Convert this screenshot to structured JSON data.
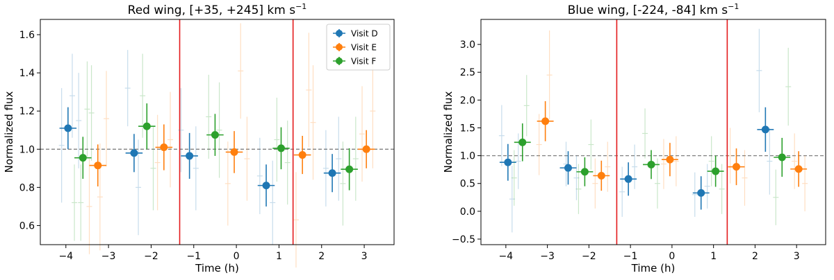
{
  "chart_data": [
    {
      "type": "scatter",
      "title": "Red wing, [+35, +245] km s",
      "title_superscript": "−1",
      "xlabel": "Time (h)",
      "ylabel": "Normalized flux",
      "xlim": [
        -4.6,
        3.7
      ],
      "ylim": [
        0.5,
        1.68
      ],
      "xticks": [
        -4,
        -3,
        -2,
        -1,
        0,
        1,
        2,
        3
      ],
      "xtick_labels": [
        "−4",
        "−3",
        "−2",
        "−1",
        "0",
        "1",
        "2",
        "3"
      ],
      "yticks": [
        0.6,
        0.8,
        1.0,
        1.2,
        1.4,
        1.6
      ],
      "ytick_labels": [
        "0.6",
        "0.8",
        "1.0",
        "1.2",
        "1.4",
        "1.6"
      ],
      "reference_line": 1.0,
      "vlines": [
        -1.33,
        1.33
      ],
      "vline_color": "#e41a1c",
      "legend": {
        "position": "top-right",
        "entries": [
          "Visit D",
          "Visit E",
          "Visit F"
        ]
      },
      "series": [
        {
          "name": "Visit D",
          "color": "#1f77b4",
          "binned": [
            {
              "x": -3.95,
              "y": 1.11,
              "xerr": 0.2,
              "yerr": 0.11
            },
            {
              "x": -2.4,
              "y": 0.98,
              "xerr": 0.2,
              "yerr": 0.1
            },
            {
              "x": -1.1,
              "y": 0.965,
              "xerr": 0.2,
              "yerr": 0.12
            },
            {
              "x": 0.7,
              "y": 0.81,
              "xerr": 0.2,
              "yerr": 0.11
            },
            {
              "x": 2.25,
              "y": 0.875,
              "xerr": 0.2,
              "yerr": 0.1
            }
          ],
          "raw": [
            {
              "x": -4.1,
              "y": 1.02,
              "yerr": 0.3
            },
            {
              "x": -3.85,
              "y": 1.28,
              "yerr": 0.22
            },
            {
              "x": -3.7,
              "y": 1.15,
              "yerr": 0.25
            },
            {
              "x": -2.55,
              "y": 1.32,
              "yerr": 0.2
            },
            {
              "x": -2.3,
              "y": 0.8,
              "yerr": 0.25
            },
            {
              "x": -1.3,
              "y": 1.1,
              "yerr": 0.22
            },
            {
              "x": -0.95,
              "y": 0.9,
              "yerr": 0.22
            },
            {
              "x": 0.55,
              "y": 0.86,
              "yerr": 0.2
            },
            {
              "x": 0.85,
              "y": 0.72,
              "yerr": 0.22
            },
            {
              "x": 2.1,
              "y": 0.9,
              "yerr": 0.2
            },
            {
              "x": 2.4,
              "y": 0.95,
              "yerr": 0.22
            }
          ]
        },
        {
          "name": "Visit E",
          "color": "#ff7f0e",
          "binned": [
            {
              "x": -3.25,
              "y": 0.915,
              "xerr": 0.2,
              "yerr": 0.11
            },
            {
              "x": -1.7,
              "y": 1.01,
              "xerr": 0.2,
              "yerr": 0.12
            },
            {
              "x": -0.05,
              "y": 0.985,
              "xerr": 0.2,
              "yerr": 0.11
            },
            {
              "x": 1.55,
              "y": 0.97,
              "xerr": 0.2,
              "yerr": 0.1
            },
            {
              "x": 3.05,
              "y": 1.0,
              "xerr": 0.2,
              "yerr": 0.1
            }
          ],
          "raw": [
            {
              "x": -3.45,
              "y": 0.7,
              "yerr": 0.25
            },
            {
              "x": -3.2,
              "y": 0.75,
              "yerr": 0.28
            },
            {
              "x": -3.05,
              "y": 1.16,
              "yerr": 0.25
            },
            {
              "x": -1.85,
              "y": 0.93,
              "yerr": 0.25
            },
            {
              "x": -1.55,
              "y": 1.05,
              "yerr": 0.25
            },
            {
              "x": -0.2,
              "y": 0.82,
              "yerr": 0.22
            },
            {
              "x": 0.1,
              "y": 1.41,
              "yerr": 0.25
            },
            {
              "x": 0.25,
              "y": 0.95,
              "yerr": 0.22
            },
            {
              "x": 1.4,
              "y": 0.63,
              "yerr": 0.25
            },
            {
              "x": 1.7,
              "y": 1.31,
              "yerr": 0.3
            },
            {
              "x": 1.8,
              "y": 1.14,
              "yerr": 0.3
            },
            {
              "x": 2.95,
              "y": 1.08,
              "yerr": 0.25
            },
            {
              "x": 3.2,
              "y": 1.2,
              "yerr": 0.3
            }
          ]
        },
        {
          "name": "Visit F",
          "color": "#2ca02c",
          "binned": [
            {
              "x": -3.6,
              "y": 0.955,
              "xerr": 0.2,
              "yerr": 0.11
            },
            {
              "x": -2.1,
              "y": 1.12,
              "xerr": 0.2,
              "yerr": 0.12
            },
            {
              "x": -0.5,
              "y": 1.075,
              "xerr": 0.2,
              "yerr": 0.11
            },
            {
              "x": 1.05,
              "y": 1.005,
              "xerr": 0.2,
              "yerr": 0.11
            },
            {
              "x": 2.65,
              "y": 0.895,
              "xerr": 0.2,
              "yerr": 0.11
            }
          ],
          "raw": [
            {
              "x": -3.8,
              "y": 0.72,
              "yerr": 0.2
            },
            {
              "x": -3.65,
              "y": 0.72,
              "yerr": 0.2
            },
            {
              "x": -3.5,
              "y": 1.21,
              "yerr": 0.25
            },
            {
              "x": -3.4,
              "y": 1.19,
              "yerr": 0.25
            },
            {
              "x": -2.2,
              "y": 1.28,
              "yerr": 0.22
            },
            {
              "x": -1.95,
              "y": 0.9,
              "yerr": 0.22
            },
            {
              "x": -0.65,
              "y": 1.17,
              "yerr": 0.22
            },
            {
              "x": -0.4,
              "y": 1.1,
              "yerr": 0.25
            },
            {
              "x": 0.95,
              "y": 1.05,
              "yerr": 0.22
            },
            {
              "x": 1.2,
              "y": 0.93,
              "yerr": 0.22
            },
            {
              "x": 2.5,
              "y": 0.82,
              "yerr": 0.22
            },
            {
              "x": 2.8,
              "y": 0.95,
              "yerr": 0.22
            }
          ]
        }
      ]
    },
    {
      "type": "scatter",
      "title": "Blue wing, [-224, -84] km s",
      "title_superscript": "−1",
      "xlabel": "Time (h)",
      "ylabel": "Normalized flux",
      "xlim": [
        -4.6,
        3.7
      ],
      "ylim": [
        -0.6,
        3.45
      ],
      "xticks": [
        -4,
        -3,
        -2,
        -1,
        0,
        1,
        2,
        3
      ],
      "xtick_labels": [
        "−4",
        "−3",
        "−2",
        "−1",
        "0",
        "1",
        "2",
        "3"
      ],
      "yticks": [
        -0.5,
        0.0,
        0.5,
        1.0,
        1.5,
        2.0,
        2.5,
        3.0
      ],
      "ytick_labels": [
        "−0.5",
        "0.0",
        "0.5",
        "1.0",
        "1.5",
        "2.0",
        "2.5",
        "3.0"
      ],
      "reference_line": 1.0,
      "vlines": [
        -1.33,
        1.33
      ],
      "vline_color": "#e41a1c",
      "series": [
        {
          "name": "Visit D",
          "color": "#1f77b4",
          "binned": [
            {
              "x": -3.95,
              "y": 0.88,
              "xerr": 0.2,
              "yerr": 0.33
            },
            {
              "x": -2.5,
              "y": 0.78,
              "xerr": 0.2,
              "yerr": 0.3
            },
            {
              "x": -1.05,
              "y": 0.58,
              "xerr": 0.2,
              "yerr": 0.3
            },
            {
              "x": 0.7,
              "y": 0.33,
              "xerr": 0.2,
              "yerr": 0.3
            },
            {
              "x": 2.25,
              "y": 1.47,
              "xerr": 0.2,
              "yerr": 0.4
            }
          ],
          "raw": [
            {
              "x": -4.1,
              "y": 1.36,
              "yerr": 0.55
            },
            {
              "x": -3.85,
              "y": 0.22,
              "yerr": 0.6
            },
            {
              "x": -3.7,
              "y": 0.9,
              "yerr": 0.5
            },
            {
              "x": -2.55,
              "y": 0.85,
              "yerr": 0.4
            },
            {
              "x": -2.3,
              "y": 0.6,
              "yerr": 0.4
            },
            {
              "x": -1.2,
              "y": 0.35,
              "yerr": 0.45
            },
            {
              "x": -0.9,
              "y": 0.8,
              "yerr": 0.4
            },
            {
              "x": 0.55,
              "y": 0.3,
              "yerr": 0.4
            },
            {
              "x": 0.85,
              "y": 0.45,
              "yerr": 0.4
            },
            {
              "x": 2.1,
              "y": 2.53,
              "yerr": 0.75
            },
            {
              "x": 2.35,
              "y": 0.9,
              "yerr": 0.6
            }
          ]
        },
        {
          "name": "Visit E",
          "color": "#ff7f0e",
          "binned": [
            {
              "x": -3.05,
              "y": 1.62,
              "xerr": 0.2,
              "yerr": 0.36
            },
            {
              "x": -1.7,
              "y": 0.64,
              "xerr": 0.2,
              "yerr": 0.27
            },
            {
              "x": -0.05,
              "y": 0.93,
              "xerr": 0.2,
              "yerr": 0.3
            },
            {
              "x": 1.55,
              "y": 0.8,
              "xerr": 0.2,
              "yerr": 0.33
            },
            {
              "x": 3.05,
              "y": 0.76,
              "xerr": 0.2,
              "yerr": 0.32
            }
          ],
          "raw": [
            {
              "x": -3.2,
              "y": 1.2,
              "yerr": 0.55
            },
            {
              "x": -2.95,
              "y": 2.45,
              "yerr": 0.8
            },
            {
              "x": -1.85,
              "y": 0.5,
              "yerr": 0.45
            },
            {
              "x": -1.55,
              "y": 0.8,
              "yerr": 0.45
            },
            {
              "x": -0.2,
              "y": 0.85,
              "yerr": 0.45
            },
            {
              "x": 0.1,
              "y": 0.9,
              "yerr": 0.45
            },
            {
              "x": 1.4,
              "y": 1.0,
              "yerr": 0.5
            },
            {
              "x": 1.75,
              "y": 0.6,
              "yerr": 0.5
            },
            {
              "x": 2.95,
              "y": 0.9,
              "yerr": 0.5
            },
            {
              "x": 3.2,
              "y": 0.5,
              "yerr": 0.5
            }
          ]
        },
        {
          "name": "Visit F",
          "color": "#2ca02c",
          "binned": [
            {
              "x": -3.6,
              "y": 1.24,
              "xerr": 0.2,
              "yerr": 0.34
            },
            {
              "x": -2.1,
              "y": 0.71,
              "xerr": 0.2,
              "yerr": 0.26
            },
            {
              "x": -0.5,
              "y": 0.84,
              "xerr": 0.2,
              "yerr": 0.26
            },
            {
              "x": 1.05,
              "y": 0.72,
              "xerr": 0.2,
              "yerr": 0.28
            },
            {
              "x": 2.65,
              "y": 0.97,
              "xerr": 0.2,
              "yerr": 0.35
            }
          ],
          "raw": [
            {
              "x": -3.8,
              "y": 0.6,
              "yerr": 0.5
            },
            {
              "x": -3.5,
              "y": 1.9,
              "yerr": 0.55
            },
            {
              "x": -2.25,
              "y": 0.4,
              "yerr": 0.45
            },
            {
              "x": -1.95,
              "y": 1.2,
              "yerr": 0.45
            },
            {
              "x": -0.65,
              "y": 1.4,
              "yerr": 0.45
            },
            {
              "x": -0.35,
              "y": 0.5,
              "yerr": 0.45
            },
            {
              "x": 0.95,
              "y": 0.9,
              "yerr": 0.45
            },
            {
              "x": 1.2,
              "y": 0.4,
              "yerr": 0.45
            },
            {
              "x": 2.5,
              "y": 0.25,
              "yerr": 0.5
            },
            {
              "x": 2.8,
              "y": 2.24,
              "yerr": 0.7
            }
          ]
        }
      ]
    }
  ]
}
